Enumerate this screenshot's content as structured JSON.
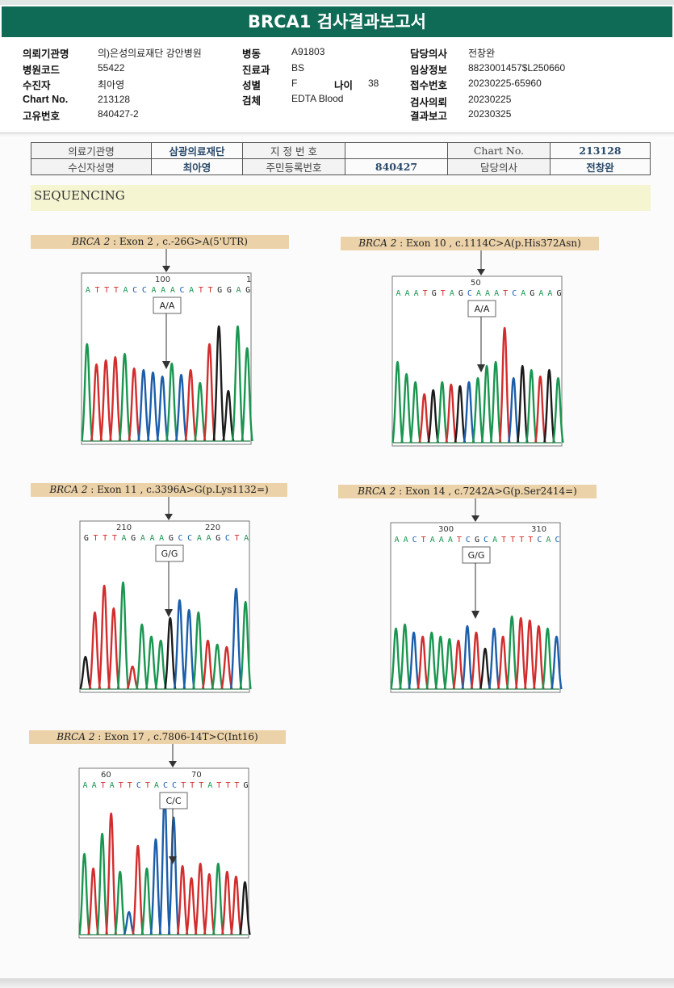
{
  "title": "BRCA1 검사결과보고서",
  "header": {
    "col1": [
      {
        "label": "의뢰기관명",
        "value": "의)은성의료재단 강안병원"
      },
      {
        "label": "병원코드",
        "value": "55422"
      },
      {
        "label": "수진자",
        "value": "최아영"
      },
      {
        "label": "Chart No.",
        "value": "213128"
      },
      {
        "label": "고유번호",
        "value": "840427-2"
      }
    ],
    "col2": [
      {
        "label": "병동",
        "value": "A91803"
      },
      {
        "label": "진료과",
        "value": "BS"
      },
      {
        "label": "성별",
        "value": "F"
      },
      {
        "label": "검체",
        "value": "EDTA Blood"
      }
    ],
    "age": {
      "label": "나이",
      "value": "38"
    },
    "col3": [
      {
        "label": "담당의사",
        "value": "전창완"
      },
      {
        "label": "임상정보",
        "value": "8823001457$L250660"
      },
      {
        "label": "접수번호",
        "value": "20230225-65960"
      },
      {
        "label": "검사의뢰",
        "value": "20230225"
      },
      {
        "label": "결과보고",
        "value": "20230325"
      }
    ]
  },
  "info_table": {
    "r1": [
      "의료기관명",
      "삼광의료재단",
      "지 정 번 호",
      "",
      "Chart No.",
      "213128"
    ],
    "r2": [
      "수신자성명",
      "최아영",
      "주민등록번호",
      "840427",
      "담당의사",
      "전창완"
    ]
  },
  "section_title": "SEQUENCING",
  "panels": [
    {
      "gene": "BRCA 2",
      "desc": " : Exon 2 , c.-26G>A(5'UTR)",
      "genotype": "A/A",
      "pos1": "100",
      "pos2": "1",
      "seq": "ATTTACCAAACATTGGAG",
      "peaks": [
        [
          "g",
          120
        ],
        [
          "r",
          95
        ],
        [
          "r",
          100
        ],
        [
          "r",
          104
        ],
        [
          "g",
          108
        ],
        [
          "r",
          90
        ],
        [
          "b",
          88
        ],
        [
          "b",
          85
        ],
        [
          "b",
          80
        ],
        [
          "g",
          96
        ],
        [
          "b",
          82
        ],
        [
          "r",
          88
        ],
        [
          "g",
          72
        ],
        [
          "r",
          120
        ],
        [
          "k",
          142
        ],
        [
          "k",
          62
        ],
        [
          "g",
          142
        ],
        [
          "g",
          115
        ]
      ]
    },
    {
      "gene": "BRCA 2",
      "desc": " : Exon 10 , c.1114C>A(p.His372Asn)",
      "genotype": "A/A",
      "pos1": "50",
      "pos2": "",
      "seq": "AAATGTAGCAAATCAGAAG",
      "peaks": [
        [
          "g",
          100
        ],
        [
          "g",
          85
        ],
        [
          "g",
          75
        ],
        [
          "r",
          60
        ],
        [
          "k",
          65
        ],
        [
          "g",
          75
        ],
        [
          "r",
          72
        ],
        [
          "k",
          70
        ],
        [
          "b",
          75
        ],
        [
          "g",
          80
        ],
        [
          "g",
          95
        ],
        [
          "g",
          100
        ],
        [
          "r",
          142
        ],
        [
          "b",
          80
        ],
        [
          "k",
          95
        ],
        [
          "g",
          90
        ],
        [
          "r",
          82
        ],
        [
          "k",
          90
        ],
        [
          "g",
          80
        ]
      ]
    },
    {
      "gene": "BRCA 2",
      "desc": " : Exon 11 , c.3396A>G(p.Lys1132=)",
      "genotype": "G/G",
      "pos1": "210",
      "pos2": "220",
      "seq": "GTTTAGAAAGCCAAGCTA",
      "peaks": [
        [
          "k",
          40
        ],
        [
          "r",
          95
        ],
        [
          "r",
          128
        ],
        [
          "r",
          100
        ],
        [
          "g",
          132
        ],
        [
          "r",
          28
        ],
        [
          "g",
          80
        ],
        [
          "g",
          65
        ],
        [
          "g",
          60
        ],
        [
          "k",
          88
        ],
        [
          "b",
          110
        ],
        [
          "b",
          98
        ],
        [
          "g",
          95
        ],
        [
          "r",
          60
        ],
        [
          "g",
          55
        ],
        [
          "r",
          52
        ],
        [
          "b",
          124
        ],
        [
          "g",
          108
        ]
      ]
    },
    {
      "gene": "BRCA 2",
      "desc": " : Exon 14 , c.7242A>G(p.Ser2414=)",
      "genotype": "G/G",
      "pos1": "300",
      "pos2": "310",
      "seq": "AACTAAATCGCATTTTCAC",
      "peaks": [
        [
          "g",
          75
        ],
        [
          "g",
          80
        ],
        [
          "b",
          70
        ],
        [
          "r",
          65
        ],
        [
          "g",
          70
        ],
        [
          "g",
          65
        ],
        [
          "g",
          62
        ],
        [
          "r",
          60
        ],
        [
          "b",
          78
        ],
        [
          "r",
          70
        ],
        [
          "k",
          50
        ],
        [
          "b",
          75
        ],
        [
          "r",
          65
        ],
        [
          "g",
          90
        ],
        [
          "r",
          88
        ],
        [
          "r",
          85
        ],
        [
          "r",
          78
        ],
        [
          "g",
          75
        ],
        [
          "b",
          65
        ]
      ]
    },
    {
      "gene": "BRCA 2",
      "desc": " : Exon 17 , c.7806-14T>C(Int16)",
      "genotype": "C/C",
      "pos1": "60",
      "pos2": "70",
      "seq": "AATATTCTACCTTTATTTG",
      "peaks": [
        [
          "g",
          100
        ],
        [
          "r",
          82
        ],
        [
          "g",
          125
        ],
        [
          "r",
          150
        ],
        [
          "g",
          78
        ],
        [
          "b",
          28
        ],
        [
          "r",
          110
        ],
        [
          "g",
          82
        ],
        [
          "b",
          118
        ],
        [
          "b",
          172
        ],
        [
          "b",
          145
        ],
        [
          "r",
          85
        ],
        [
          "r",
          70
        ],
        [
          "r",
          88
        ],
        [
          "r",
          75
        ],
        [
          "g",
          88
        ],
        [
          "r",
          78
        ],
        [
          "r",
          72
        ],
        [
          "k",
          65
        ]
      ]
    }
  ],
  "colors": {
    "A": "#1a9650",
    "C": "#1b5eaa",
    "G": "#1b1b1b",
    "T": "#d22d2d",
    "band": "#0f6b55"
  }
}
